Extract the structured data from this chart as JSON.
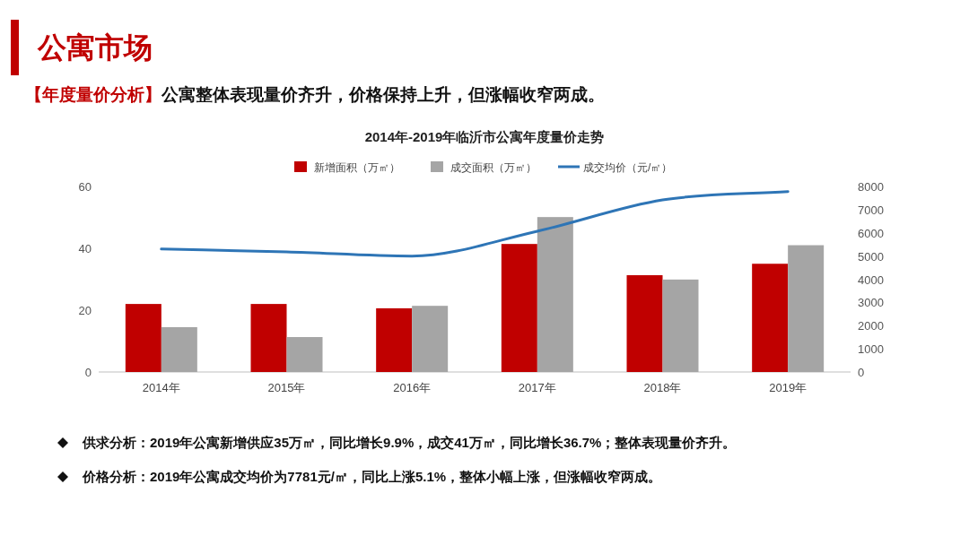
{
  "chart_data": {
    "type": "bar",
    "title": "2014年-2019年临沂市公寓年度量价走势",
    "annotations": [
      "公寓市场",
      "【年度量价分析】",
      "公寓整体表现量价齐升，价格保持上升，但涨幅收窄两成。",
      "供求分析：2019年公寓新增供应35万㎡，同比增长9.9%，成交41万㎡，同比增长36.7%；整体表现量价齐升。",
      "价格分析：2019年公寓成交均价为7781元/㎡，同比上涨5.1%，整体小幅上涨，但涨幅收窄两成。"
    ],
    "categories": [
      "2014年",
      "2015年",
      "2016年",
      "2017年",
      "2018年",
      "2019年"
    ],
    "series": [
      {
        "name": "新增面积（万㎡）",
        "color": "#c00000",
        "values": [
          22,
          22,
          20.6,
          41.4,
          31.3,
          35
        ]
      },
      {
        "name": "成交面积（万㎡）",
        "color": "#a5a5a5",
        "values": [
          14.5,
          11.3,
          21.4,
          50.1,
          29.9,
          41
        ]
      },
      {
        "name": "成交均价（元/㎡）",
        "type": "line",
        "axis": "y2",
        "color": "#2e75b6",
        "values": [
          5300,
          5180,
          5000,
          6070,
          7420,
          7780
        ]
      }
    ],
    "ylim": [
      0,
      60
    ],
    "yticks": [
      0,
      20,
      40,
      60
    ],
    "y2lim": [
      0,
      8000
    ],
    "y2ticks": [
      0,
      1000,
      2000,
      3000,
      4000,
      5000,
      6000,
      7000,
      8000
    ],
    "legend": "top"
  }
}
